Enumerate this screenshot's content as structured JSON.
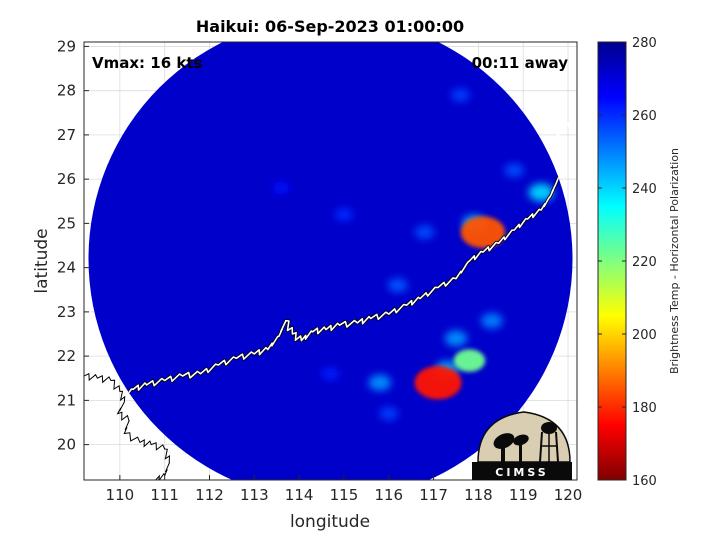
{
  "chart_data": {
    "type": "heatmap",
    "title": "Haikui: 06-Sep-2023 01:00:00",
    "xlabel": "longitude",
    "ylabel": "latitude",
    "xlim": [
      109.2,
      120.2
    ],
    "ylim": [
      19.2,
      29.1
    ],
    "xticks": [
      110,
      111,
      112,
      113,
      114,
      115,
      116,
      117,
      118,
      119,
      120
    ],
    "yticks": [
      20,
      21,
      22,
      23,
      24,
      25,
      26,
      27,
      28,
      29
    ],
    "grid": true,
    "swath": {
      "center_lon": 114.7,
      "center_lat": 24.2,
      "radius_deg": 5.4
    },
    "annotations": {
      "vmax": "Vmax: 16 kts",
      "time_offset": "00:11 away"
    },
    "colorbar": {
      "label": "Brightness Temp - Horizontal Polarization",
      "range": [
        160,
        280
      ],
      "ticks": [
        160,
        180,
        200,
        220,
        240,
        260,
        280
      ],
      "colormap": "jet"
    },
    "background_value": 272,
    "features": [
      {
        "lon": 117.1,
        "lat": 21.4,
        "value": 178
      },
      {
        "lon": 118.1,
        "lat": 24.8,
        "value": 185
      },
      {
        "lon": 117.8,
        "lat": 21.9,
        "value": 222
      },
      {
        "lon": 117.5,
        "lat": 22.4,
        "value": 248
      },
      {
        "lon": 117.3,
        "lat": 21.7,
        "value": 245
      },
      {
        "lon": 118.3,
        "lat": 22.8,
        "value": 250
      },
      {
        "lon": 117.9,
        "lat": 25.0,
        "value": 245
      },
      {
        "lon": 115.8,
        "lat": 21.4,
        "value": 248
      },
      {
        "lon": 116.2,
        "lat": 23.6,
        "value": 255
      },
      {
        "lon": 116.8,
        "lat": 24.8,
        "value": 256
      },
      {
        "lon": 117.6,
        "lat": 27.9,
        "value": 258
      },
      {
        "lon": 118.8,
        "lat": 26.2,
        "value": 256
      },
      {
        "lon": 119.4,
        "lat": 25.7,
        "value": 240
      },
      {
        "lon": 115.0,
        "lat": 25.2,
        "value": 260
      },
      {
        "lon": 116.0,
        "lat": 20.7,
        "value": 258
      },
      {
        "lon": 114.7,
        "lat": 21.6,
        "value": 262
      },
      {
        "lon": 113.6,
        "lat": 25.8,
        "value": 264
      }
    ]
  },
  "logo": {
    "text": "CIMSS"
  },
  "colors": {
    "coastline": "#ffffff",
    "land_outline": "#000000",
    "background": "#0018a8"
  }
}
